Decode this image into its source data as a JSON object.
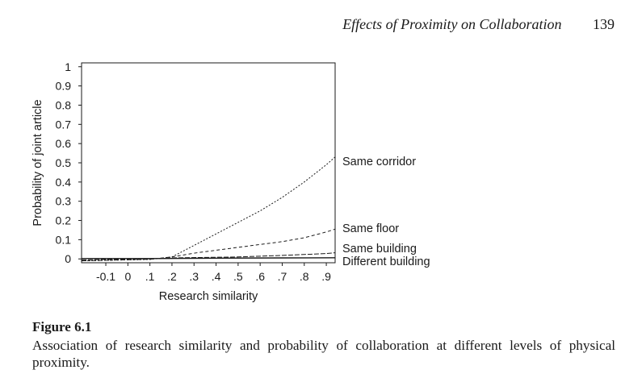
{
  "running_head": {
    "title": "Effects of Proximity on Collaboration",
    "page_number": "139"
  },
  "figure": {
    "label": "Figure 6.1",
    "caption": "Association of research similarity and probability of collaboration at different levels of physical proximity."
  },
  "chart_data": {
    "type": "line",
    "xlabel": "Research similarity",
    "ylabel": "Probability of joint article",
    "xlim": [
      -0.21,
      0.94
    ],
    "ylim": [
      -0.02,
      1.02
    ],
    "x_ticks": [
      -0.1,
      0,
      0.1,
      0.2,
      0.3,
      0.4,
      0.5,
      0.6,
      0.7,
      0.8,
      0.9
    ],
    "x_tick_labels": [
      "-0.1",
      "0",
      ".1",
      ".2",
      ".3",
      ".4",
      ".5",
      ".6",
      ".7",
      ".8",
      ".9"
    ],
    "y_ticks": [
      0,
      0.1,
      0.2,
      0.3,
      0.4,
      0.5,
      0.6,
      0.7,
      0.8,
      0.9,
      1
    ],
    "y_tick_labels": [
      "0",
      "0.1",
      "0.2",
      "0.3",
      "0.4",
      "0.5",
      "0.6",
      "0.7",
      "0.8",
      "0.9",
      "1"
    ],
    "grid": false,
    "legend": "direct labels at right end of lines",
    "series": [
      {
        "name": "Same corridor",
        "x": [
          -0.21,
          0.1,
          0.2,
          0.3,
          0.4,
          0.5,
          0.6,
          0.7,
          0.8,
          0.9,
          0.94
        ],
        "y": [
          -0.01,
          -0.003,
          0.01,
          0.07,
          0.13,
          0.19,
          0.25,
          0.32,
          0.4,
          0.49,
          0.53
        ]
      },
      {
        "name": "Same floor",
        "x": [
          -0.21,
          0.1,
          0.2,
          0.3,
          0.4,
          0.5,
          0.6,
          0.7,
          0.8,
          0.9,
          0.94
        ],
        "y": [
          -0.01,
          -0.002,
          0.01,
          0.03,
          0.045,
          0.06,
          0.075,
          0.09,
          0.11,
          0.14,
          0.155
        ]
      },
      {
        "name": "Same building",
        "x": [
          -0.21,
          0.1,
          0.2,
          0.5,
          0.7,
          0.9,
          0.94
        ],
        "y": [
          -0.005,
          0,
          0.005,
          0.01,
          0.018,
          0.028,
          0.032
        ]
      },
      {
        "name": "Different building",
        "x": [
          -0.21,
          0.1,
          0.4,
          0.7,
          0.94
        ],
        "y": [
          0.002,
          0.002,
          0.004,
          0.005,
          0.006
        ]
      }
    ]
  }
}
